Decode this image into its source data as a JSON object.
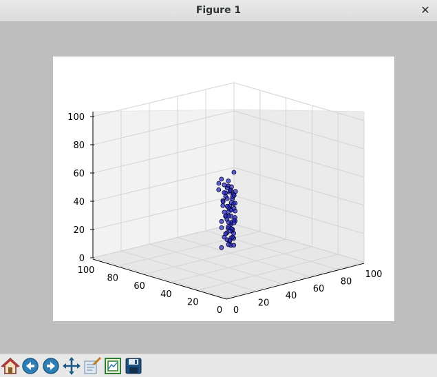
{
  "window": {
    "title": "Figure 1",
    "close_glyph": "✕"
  },
  "toolbar": {
    "items": [
      {
        "icon": "home-icon"
      },
      {
        "icon": "back-arrow-icon"
      },
      {
        "icon": "forward-arrow-icon"
      },
      {
        "icon": "pan-icon"
      },
      {
        "icon": "zoom-icon"
      },
      {
        "icon": "configure-subplots-icon"
      },
      {
        "icon": "save-icon"
      }
    ]
  },
  "chart_data": {
    "type": "scatter",
    "projection": "3d",
    "x_ticks": [
      "0",
      "20",
      "40",
      "60",
      "80",
      "100"
    ],
    "y_ticks": [
      "100",
      "80",
      "60",
      "40",
      "20",
      "0"
    ],
    "z_ticks": [
      "0",
      "20",
      "40",
      "60",
      "80",
      "100"
    ],
    "xlim": [
      0,
      100
    ],
    "ylim": [
      0,
      100
    ],
    "zlim": [
      0,
      100
    ],
    "grid": true,
    "marker_color": "#2b2bbf",
    "points": [
      [
        45,
        45,
        55
      ],
      [
        46,
        44,
        52
      ],
      [
        44,
        46,
        50
      ],
      [
        47,
        43,
        49
      ],
      [
        45,
        47,
        47
      ],
      [
        48,
        45,
        45
      ],
      [
        44,
        48,
        44
      ],
      [
        46,
        42,
        43
      ],
      [
        49,
        44,
        42
      ],
      [
        43,
        47,
        41
      ],
      [
        47,
        46,
        40
      ],
      [
        45,
        43,
        39
      ],
      [
        48,
        48,
        38
      ],
      [
        44,
        44,
        37
      ],
      [
        50,
        45,
        36
      ],
      [
        46,
        49,
        35
      ],
      [
        43,
        45,
        34
      ],
      [
        47,
        42,
        33
      ],
      [
        49,
        47,
        32
      ],
      [
        45,
        46,
        31
      ],
      [
        48,
        43,
        30
      ],
      [
        44,
        49,
        29
      ],
      [
        46,
        44,
        28
      ],
      [
        50,
        48,
        27
      ],
      [
        43,
        43,
        26
      ],
      [
        47,
        47,
        25
      ],
      [
        45,
        42,
        24
      ],
      [
        49,
        46,
        23
      ],
      [
        44,
        45,
        22
      ],
      [
        48,
        44,
        21
      ],
      [
        46,
        48,
        20
      ],
      [
        43,
        46,
        19
      ],
      [
        47,
        43,
        18
      ],
      [
        50,
        47,
        17
      ],
      [
        45,
        44,
        16
      ],
      [
        48,
        49,
        15
      ],
      [
        44,
        42,
        14
      ],
      [
        46,
        46,
        13
      ],
      [
        49,
        45,
        12
      ],
      [
        43,
        48,
        11
      ],
      [
        51,
        52,
        50
      ],
      [
        52,
        51,
        47
      ],
      [
        53,
        50,
        44
      ],
      [
        52,
        53,
        42
      ],
      [
        54,
        52,
        39
      ],
      [
        53,
        54,
        36
      ],
      [
        55,
        53,
        33
      ],
      [
        52,
        52,
        30
      ],
      [
        54,
        50,
        27
      ],
      [
        56,
        52,
        24
      ],
      [
        53,
        51,
        21
      ],
      [
        55,
        54,
        18
      ],
      [
        52,
        50,
        15
      ],
      [
        54,
        53,
        12
      ],
      [
        51,
        51,
        26
      ],
      [
        56,
        55,
        46
      ],
      [
        57,
        53,
        43
      ],
      [
        50,
        54,
        40
      ],
      [
        55,
        51,
        35
      ],
      [
        53,
        55,
        29
      ],
      [
        42,
        47,
        60
      ],
      [
        41,
        48,
        57
      ],
      [
        43,
        46,
        56
      ],
      [
        40,
        47,
        53
      ],
      [
        42,
        45,
        51
      ],
      [
        58,
        56,
        48
      ],
      [
        59,
        54,
        45
      ],
      [
        46,
        46,
        58
      ],
      [
        52,
        48,
        62
      ],
      [
        45,
        50,
        24
      ]
    ]
  }
}
